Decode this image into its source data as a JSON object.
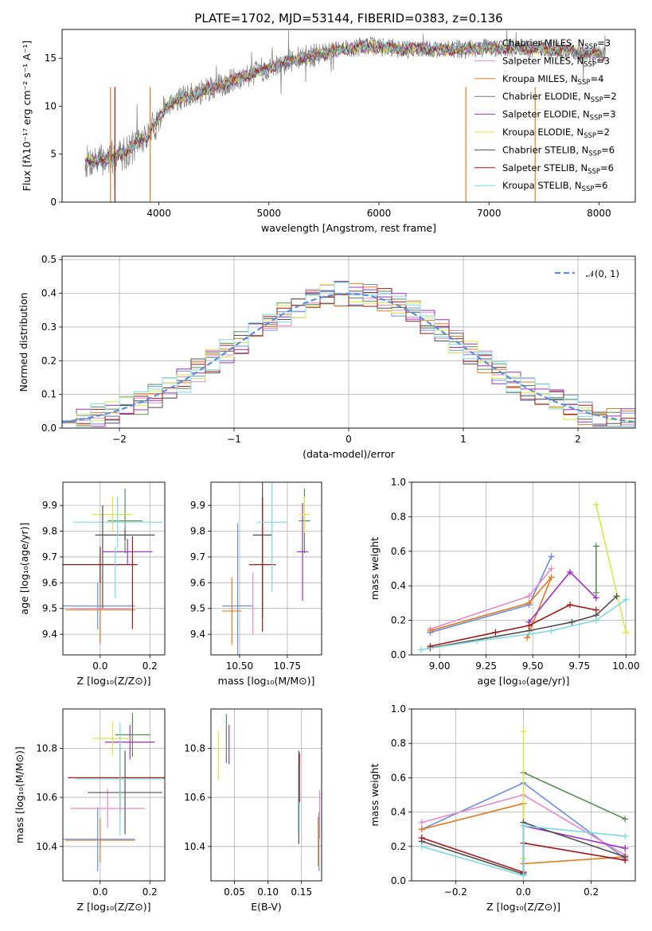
{
  "colors": {
    "chabrier_miles": "#6b8fdc",
    "salpeter_miles": "#e58ac8",
    "kroupa_miles": "#e07b20",
    "chabrier_elodie": "#5a8c5a",
    "salpeter_elodie": "#9b30c0",
    "kroupa_elodie": "#d4e84a",
    "chabrier_stelib": "#505050",
    "salpeter_stelib": "#a01818",
    "kroupa_stelib": "#7fd8e0",
    "obs_gray": "#7f7f7f",
    "normal_line": "#5b8de0"
  },
  "chart_data": [
    {
      "id": "spectrum",
      "type": "line",
      "title": "PLATE=1702, MJD=53144, FIBERID=0383, z=0.136",
      "xlabel": "wavelength [Angstrom, rest frame]",
      "ylabel": "Flux [fλ10⁻¹⁷ erg cm⁻² s⁻¹ A⁻¹]",
      "xlim": [
        3120,
        8330
      ],
      "ylim": [
        0,
        18
      ],
      "xticks": [
        "4000",
        "5000",
        "6000",
        "7000",
        "8000"
      ],
      "yticks": [
        "0",
        "5",
        "10",
        "15"
      ],
      "legend_position": "upper-right",
      "continuum": {
        "x": [
          3330,
          3500,
          3700,
          3900,
          4100,
          4300,
          4500,
          4700,
          4900,
          5100,
          5300,
          5600,
          5900,
          6200,
          6500,
          6800,
          7100,
          7400,
          7700,
          8000,
          8060
        ],
        "y": [
          4.2,
          4.4,
          5.2,
          7.0,
          10.4,
          11.2,
          11.9,
          12.8,
          13.6,
          14.4,
          15.0,
          15.8,
          16.3,
          16.0,
          15.9,
          16.0,
          16.1,
          16.0,
          15.8,
          15.4,
          15.3
        ]
      },
      "series": [
        {
          "name": "Chabrier MILES, N_SSP=3",
          "label": "Chabrier MILES, N",
          "label_sub": "SSP",
          "label_tail": "=3"
        },
        {
          "name": "Salpeter MILES, N_SSP=3",
          "label": "Salpeter MILES, N",
          "label_sub": "SSP",
          "label_tail": "=3"
        },
        {
          "name": "Kroupa MILES, N_SSP=4",
          "label": "Kroupa MILES, N",
          "label_sub": "SSP",
          "label_tail": "=4"
        },
        {
          "name": "Chabrier ELODIE, N_SSP=2",
          "label": "Chabrier ELODIE, N",
          "label_sub": "SSP",
          "label_tail": "=2"
        },
        {
          "name": "Salpeter ELODIE, N_SSP=3",
          "label": "Salpeter ELODIE, N",
          "label_sub": "SSP",
          "label_tail": "=3"
        },
        {
          "name": "Kroupa ELODIE, N_SSP=2",
          "label": "Kroupa ELODIE, N",
          "label_sub": "SSP",
          "label_tail": "=2"
        },
        {
          "name": "Chabrier STELIB, N_SSP=6",
          "label": "Chabrier STELIB, N",
          "label_sub": "SSP",
          "label_tail": "=6"
        },
        {
          "name": "Salpeter STELIB, N_SSP=6",
          "label": "Salpeter STELIB, N",
          "label_sub": "SSP",
          "label_tail": "=6"
        },
        {
          "name": "Kroupa STELIB, N_SSP=6",
          "label": "Kroupa STELIB, N",
          "label_sub": "SSP",
          "label_tail": "=6"
        }
      ]
    },
    {
      "id": "residuals",
      "type": "step",
      "xlabel": "(data-model)/error",
      "ylabel": "Normed distribution",
      "xlim": [
        -2.5,
        2.5
      ],
      "ylim": [
        0,
        0.51
      ],
      "xticks": [
        "−2",
        "−1",
        "0",
        "1",
        "2"
      ],
      "yticks": [
        "0.0",
        "0.1",
        "0.2",
        "0.3",
        "0.4",
        "0.5"
      ],
      "grid": true,
      "legend_position": "upper-right",
      "legend_label": "𝒩(0, 1)",
      "bin_edges_range": [
        -2.5,
        2.5
      ],
      "n_bins": 40,
      "normal_curve": {
        "mean": 0,
        "sigma": 1
      }
    },
    {
      "id": "age-vs-Z",
      "type": "errorbar",
      "xlabel": "Z [log₁₀(Z/Z⊙)]",
      "ylabel": "age  [log₁₀(age/yr)]",
      "xlim": [
        -0.15,
        0.26
      ],
      "ylim": [
        9.32,
        9.99
      ],
      "xticks": [
        "0.0",
        "0.2"
      ],
      "yticks": [
        "9.4",
        "9.5",
        "9.6",
        "9.7",
        "9.8",
        "9.9"
      ],
      "points": [
        {
          "c": "chabrier_miles",
          "x": -0.01,
          "y": 9.51,
          "xerr": 0.15,
          "yerr": 0.09
        },
        {
          "c": "salpeter_miles",
          "x": 0.0,
          "y": 9.5,
          "xerr": 0.12,
          "yerr": 0.14
        },
        {
          "c": "kroupa_miles",
          "x": 0.0,
          "y": 9.495,
          "xerr": 0.14,
          "yerr": 0.13
        },
        {
          "c": "chabrier_elodie",
          "x": 0.1,
          "y": 9.84,
          "xerr": 0.07,
          "yerr": 0.125
        },
        {
          "c": "salpeter_elodie",
          "x": 0.11,
          "y": 9.72,
          "xerr": 0.1,
          "yerr": 0.05
        },
        {
          "c": "kroupa_elodie",
          "x": 0.05,
          "y": 9.865,
          "xerr": 0.08,
          "yerr": 0.07
        },
        {
          "c": "chabrier_stelib",
          "x": 0.1,
          "y": 9.785,
          "xerr": 0.12,
          "yerr": 0.02
        },
        {
          "c": "salpeter_stelib",
          "x": 0.0,
          "y": 9.67,
          "xerr": 0.15,
          "yerr": 0.07
        },
        {
          "c": "kroupa_stelib",
          "x": 0.07,
          "y": 9.835,
          "xerr": 0.18,
          "yerr": 0.1
        },
        {
          "c": "chabrier_stelib",
          "x": 0.01,
          "y": 9.7,
          "xerr": 0.0,
          "yerr": 0.2
        },
        {
          "c": "salpeter_stelib",
          "x": 0.13,
          "y": 9.6,
          "xerr": 0.0,
          "yerr": 0.18
        },
        {
          "c": "kroupa_stelib",
          "x": 0.06,
          "y": 9.64,
          "xerr": 0.0,
          "yerr": 0.1
        }
      ]
    },
    {
      "id": "age-vs-mass",
      "type": "errorbar",
      "xlabel": "mass [log₁₀(M/M⊙)]",
      "ylabel": "",
      "xlim": [
        10.35,
        10.93
      ],
      "ylim": [
        9.32,
        9.99
      ],
      "xticks": [
        "10.50",
        "10.75"
      ],
      "yticks": [
        "9.4",
        "9.5",
        "9.6",
        "9.7",
        "9.8",
        "9.9"
      ],
      "points": [
        {
          "c": "chabrier_miles",
          "x": 10.49,
          "y": 9.51,
          "xerr": 0.08,
          "yerr": 0.32
        },
        {
          "c": "salpeter_miles",
          "x": 10.57,
          "y": 9.52,
          "xerr": 0.0,
          "yerr": 0.12
        },
        {
          "c": "kroupa_miles",
          "x": 10.46,
          "y": 9.49,
          "xerr": 0.05,
          "yerr": 0.13
        },
        {
          "c": "chabrier_elodie",
          "x": 10.84,
          "y": 9.84,
          "xerr": 0.03,
          "yerr": 0.125
        },
        {
          "c": "salpeter_elodie",
          "x": 10.83,
          "y": 9.72,
          "xerr": 0.03,
          "yerr": 0.19
        },
        {
          "c": "kroupa_elodie",
          "x": 10.84,
          "y": 9.865,
          "xerr": 0.03,
          "yerr": 0.07
        },
        {
          "c": "chabrier_stelib",
          "x": 10.62,
          "y": 9.785,
          "xerr": 0.05,
          "yerr": 0.32
        },
        {
          "c": "salpeter_stelib",
          "x": 10.62,
          "y": 9.67,
          "xerr": 0.07,
          "yerr": 0.26
        },
        {
          "c": "kroupa_stelib",
          "x": 10.67,
          "y": 9.835,
          "xerr": 0.08,
          "yerr": 0.27
        }
      ]
    },
    {
      "id": "weight-vs-age",
      "type": "line",
      "xlabel": "age  [log₁₀(age/yr)]",
      "ylabel": "mass weight",
      "xlim": [
        8.85,
        10.05
      ],
      "ylim": [
        0,
        1
      ],
      "xticks": [
        "9.00",
        "9.25",
        "9.50",
        "9.75",
        "10.00"
      ],
      "yticks": [
        "0.0",
        "0.2",
        "0.4",
        "0.6",
        "0.8",
        "1.0"
      ],
      "grid": true,
      "series": [
        {
          "c": "chabrier_miles",
          "x": [
            8.95,
            9.48,
            9.6
          ],
          "y": [
            0.13,
            0.29,
            0.57
          ]
        },
        {
          "c": "salpeter_miles",
          "x": [
            8.95,
            9.48,
            9.6
          ],
          "y": [
            0.15,
            0.34,
            0.5
          ]
        },
        {
          "c": "kroupa_miles",
          "x": [
            8.95,
            9.48,
            9.6,
            9.47
          ],
          "y": [
            0.14,
            0.3,
            0.45,
            0.1
          ]
        },
        {
          "c": "chabrier_elodie",
          "x": [
            9.84,
            9.84
          ],
          "y": [
            0.36,
            0.63
          ]
        },
        {
          "c": "salpeter_elodie",
          "x": [
            9.48,
            9.7,
            9.84
          ],
          "y": [
            0.19,
            0.48,
            0.33
          ]
        },
        {
          "c": "kroupa_elodie",
          "x": [
            9.84,
            10.0
          ],
          "y": [
            0.87,
            0.13
          ]
        },
        {
          "c": "chabrier_stelib",
          "x": [
            8.95,
            9.48,
            9.71,
            9.84,
            9.95
          ],
          "y": [
            0.04,
            0.14,
            0.19,
            0.23,
            0.34
          ]
        },
        {
          "c": "salpeter_stelib",
          "x": [
            8.95,
            9.3,
            9.48,
            9.7,
            9.84
          ],
          "y": [
            0.05,
            0.13,
            0.17,
            0.29,
            0.26
          ]
        },
        {
          "c": "kroupa_stelib",
          "x": [
            8.9,
            9.2,
            9.48,
            9.6,
            9.84,
            10.0
          ],
          "y": [
            0.03,
            0.08,
            0.12,
            0.14,
            0.2,
            0.32
          ]
        }
      ]
    },
    {
      "id": "mass-vs-Z",
      "type": "errorbar",
      "xlabel": "Z [log₁₀(Z/Z⊙)]",
      "ylabel": "mass [log₁₀(M/M⊙)]",
      "xlim": [
        -0.15,
        0.26
      ],
      "ylim": [
        10.26,
        10.96
      ],
      "xticks": [
        "0.0",
        "0.2"
      ],
      "yticks": [
        "10.4",
        "10.6",
        "10.8"
      ],
      "points": [
        {
          "c": "chabrier_miles",
          "x": -0.01,
          "y": 10.43,
          "xerr": 0.15,
          "yerr": 0.13
        },
        {
          "c": "salpeter_miles",
          "x": 0.03,
          "y": 10.555,
          "xerr": 0.15,
          "yerr": 0.08
        },
        {
          "c": "kroupa_miles",
          "x": 0.0,
          "y": 10.425,
          "xerr": 0.14,
          "yerr": 0.09
        },
        {
          "c": "chabrier_elodie",
          "x": 0.13,
          "y": 10.855,
          "xerr": 0.07,
          "yerr": 0.09
        },
        {
          "c": "salpeter_elodie",
          "x": 0.12,
          "y": 10.825,
          "xerr": 0.1,
          "yerr": 0.07
        },
        {
          "c": "kroupa_elodie",
          "x": 0.05,
          "y": 10.84,
          "xerr": 0.08,
          "yerr": 0.07
        },
        {
          "c": "chabrier_stelib",
          "x": 0.1,
          "y": 10.62,
          "xerr": 0.15,
          "yerr": 0.17
        },
        {
          "c": "salpeter_stelib",
          "x": 0.08,
          "y": 10.68,
          "xerr": 0.21,
          "yerr": 0.14
        },
        {
          "c": "kroupa_stelib",
          "x": 0.08,
          "y": 10.675,
          "xerr": 0.18,
          "yerr": 0.23
        }
      ]
    },
    {
      "id": "mass-vs-ebv",
      "type": "errorbar",
      "xlabel": "E(B-V)",
      "ylabel": "",
      "xlim": [
        0.015,
        0.18
      ],
      "ylim": [
        10.26,
        10.96
      ],
      "xticks": [
        "0.05",
        "0.10",
        "0.15"
      ],
      "yticks": [
        "10.4",
        "10.6",
        "10.8"
      ],
      "points": [
        {
          "c": "chabrier_miles",
          "x": 0.176,
          "y": 10.42,
          "xerr": 0.0,
          "yerr": 0.12
        },
        {
          "c": "salpeter_miles",
          "x": 0.177,
          "y": 10.53,
          "xerr": 0.0,
          "yerr": 0.1
        },
        {
          "c": "kroupa_miles",
          "x": 0.175,
          "y": 10.42,
          "xerr": 0.0,
          "yerr": 0.1
        },
        {
          "c": "chabrier_elodie",
          "x": 0.038,
          "y": 10.84,
          "xerr": 0.0,
          "yerr": 0.1
        },
        {
          "c": "salpeter_elodie",
          "x": 0.042,
          "y": 10.815,
          "xerr": 0.0,
          "yerr": 0.08
        },
        {
          "c": "kroupa_elodie",
          "x": 0.026,
          "y": 10.77,
          "xerr": 0.0,
          "yerr": 0.1
        },
        {
          "c": "chabrier_stelib",
          "x": 0.146,
          "y": 10.6,
          "xerr": 0.0,
          "yerr": 0.19
        },
        {
          "c": "salpeter_stelib",
          "x": 0.147,
          "y": 10.68,
          "xerr": 0.0,
          "yerr": 0.1
        },
        {
          "c": "kroupa_stelib",
          "x": 0.145,
          "y": 10.6,
          "xerr": 0.0,
          "yerr": 0.14
        }
      ]
    },
    {
      "id": "weight-vs-Z",
      "type": "line",
      "xlabel": "Z [log₁₀(Z/Z⊙)]",
      "ylabel": "mass weight",
      "xlim": [
        -0.33,
        0.33
      ],
      "ylim": [
        0,
        1
      ],
      "xticks": [
        "−0.2",
        "0.0",
        "0.2"
      ],
      "yticks": [
        "0.0",
        "0.2",
        "0.4",
        "0.6",
        "0.8",
        "1.0"
      ],
      "grid": true,
      "series": [
        {
          "c": "chabrier_miles",
          "x": [
            -0.3,
            0.0,
            0.3
          ],
          "y": [
            0.3,
            0.57,
            0.13
          ]
        },
        {
          "c": "salpeter_miles",
          "x": [
            -0.3,
            0.0,
            0.3
          ],
          "y": [
            0.34,
            0.5,
            0.15
          ]
        },
        {
          "c": "kroupa_miles",
          "x": [
            -0.3,
            0.0,
            0.0,
            0.3
          ],
          "y": [
            0.3,
            0.45,
            0.1,
            0.14
          ]
        },
        {
          "c": "chabrier_elodie",
          "x": [
            0.0,
            0.3
          ],
          "y": [
            0.63,
            0.36
          ]
        },
        {
          "c": "salpeter_elodie",
          "x": [
            0.0,
            0.3
          ],
          "y": [
            0.32,
            0.19
          ]
        },
        {
          "c": "kroupa_elodie",
          "x": [
            0.0,
            0.0
          ],
          "y": [
            0.87,
            0.13
          ]
        },
        {
          "c": "chabrier_stelib",
          "x": [
            -0.3,
            0.0,
            0.0,
            0.3
          ],
          "y": [
            0.23,
            0.04,
            0.34,
            0.14
          ]
        },
        {
          "c": "salpeter_stelib",
          "x": [
            -0.3,
            0.0,
            0.0,
            0.3
          ],
          "y": [
            0.25,
            0.05,
            0.22,
            0.12
          ]
        },
        {
          "c": "kroupa_stelib",
          "x": [
            -0.3,
            0.0,
            0.0,
            0.3
          ],
          "y": [
            0.2,
            0.03,
            0.32,
            0.26
          ]
        }
      ]
    }
  ]
}
